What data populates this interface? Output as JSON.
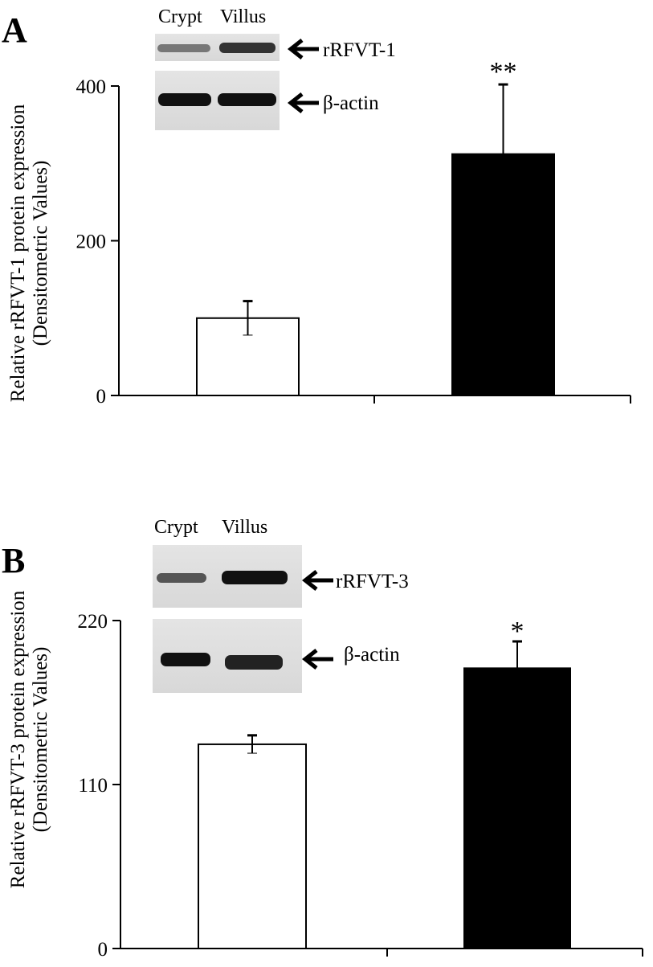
{
  "chart_data": [
    {
      "type": "bar",
      "panel_label": "A",
      "y_label": [
        "Relative rRFVT-1 protein expression",
        "(Densitometric Values)"
      ],
      "blot": {
        "lanes": [
          "Crypt",
          "Villus"
        ],
        "bands": [
          "rRFVT-1",
          "β-actin"
        ]
      },
      "categories": [
        null,
        null
      ],
      "values": [
        100,
        312
      ],
      "errors": [
        22,
        90
      ],
      "colors": [
        "#ffffff",
        "#000000"
      ],
      "annotation": "**",
      "ylim": [
        0,
        400
      ],
      "yticks": [
        0,
        200,
        400
      ]
    },
    {
      "type": "bar",
      "panel_label": "B",
      "y_label": [
        "Relative rRFVT-3 protein expression",
        "(Densitometric Values)"
      ],
      "blot": {
        "lanes": [
          "Crypt",
          "Villus"
        ],
        "bands": [
          "rRFVT-3",
          "β-actin"
        ]
      },
      "categories": [
        null,
        null
      ],
      "values": [
        137,
        188
      ],
      "errors": [
        6,
        18
      ],
      "colors": [
        "#ffffff",
        "#000000"
      ],
      "annotation": "*",
      "ylim": [
        0,
        220
      ],
      "yticks": [
        0,
        110,
        220
      ]
    }
  ]
}
